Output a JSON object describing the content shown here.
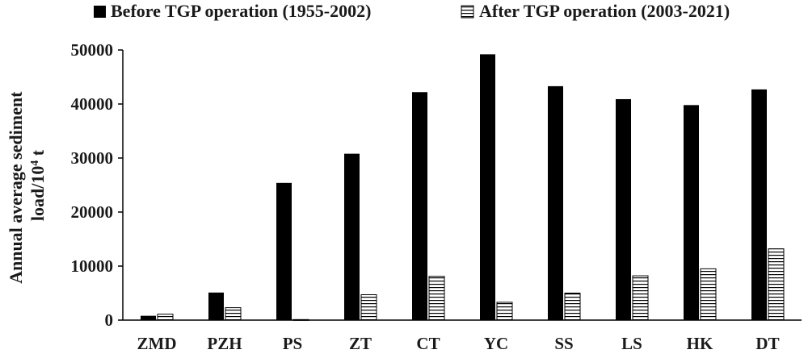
{
  "chart_data": {
    "type": "bar",
    "categories": [
      "ZMD",
      "PZH",
      "PS",
      "ZT",
      "CT",
      "YC",
      "SS",
      "LS",
      "HK",
      "DT"
    ],
    "series": [
      {
        "name": "Before TGP operation (1955-2002)",
        "values": [
          800,
          5100,
          25400,
          30800,
          42200,
          49200,
          43300,
          40900,
          39800,
          42700
        ],
        "color": "#000000",
        "pattern": "solid"
      },
      {
        "name": "After TGP operation (2003-2021)",
        "values": [
          1100,
          2300,
          100,
          4700,
          8100,
          3300,
          5000,
          8200,
          9500,
          13200
        ],
        "color": "#ffffff",
        "pattern": "horizontal-stripes"
      }
    ],
    "ylabel_line1": "Annual average sediment",
    "ylabel_line2_prefix": "load/10",
    "ylabel_sup": "4",
    "ylabel_line2_suffix": " t",
    "ylim": [
      0,
      50000
    ],
    "yticks": [
      0,
      10000,
      20000,
      30000,
      40000,
      50000
    ],
    "legend_position": "top",
    "grid": false
  }
}
